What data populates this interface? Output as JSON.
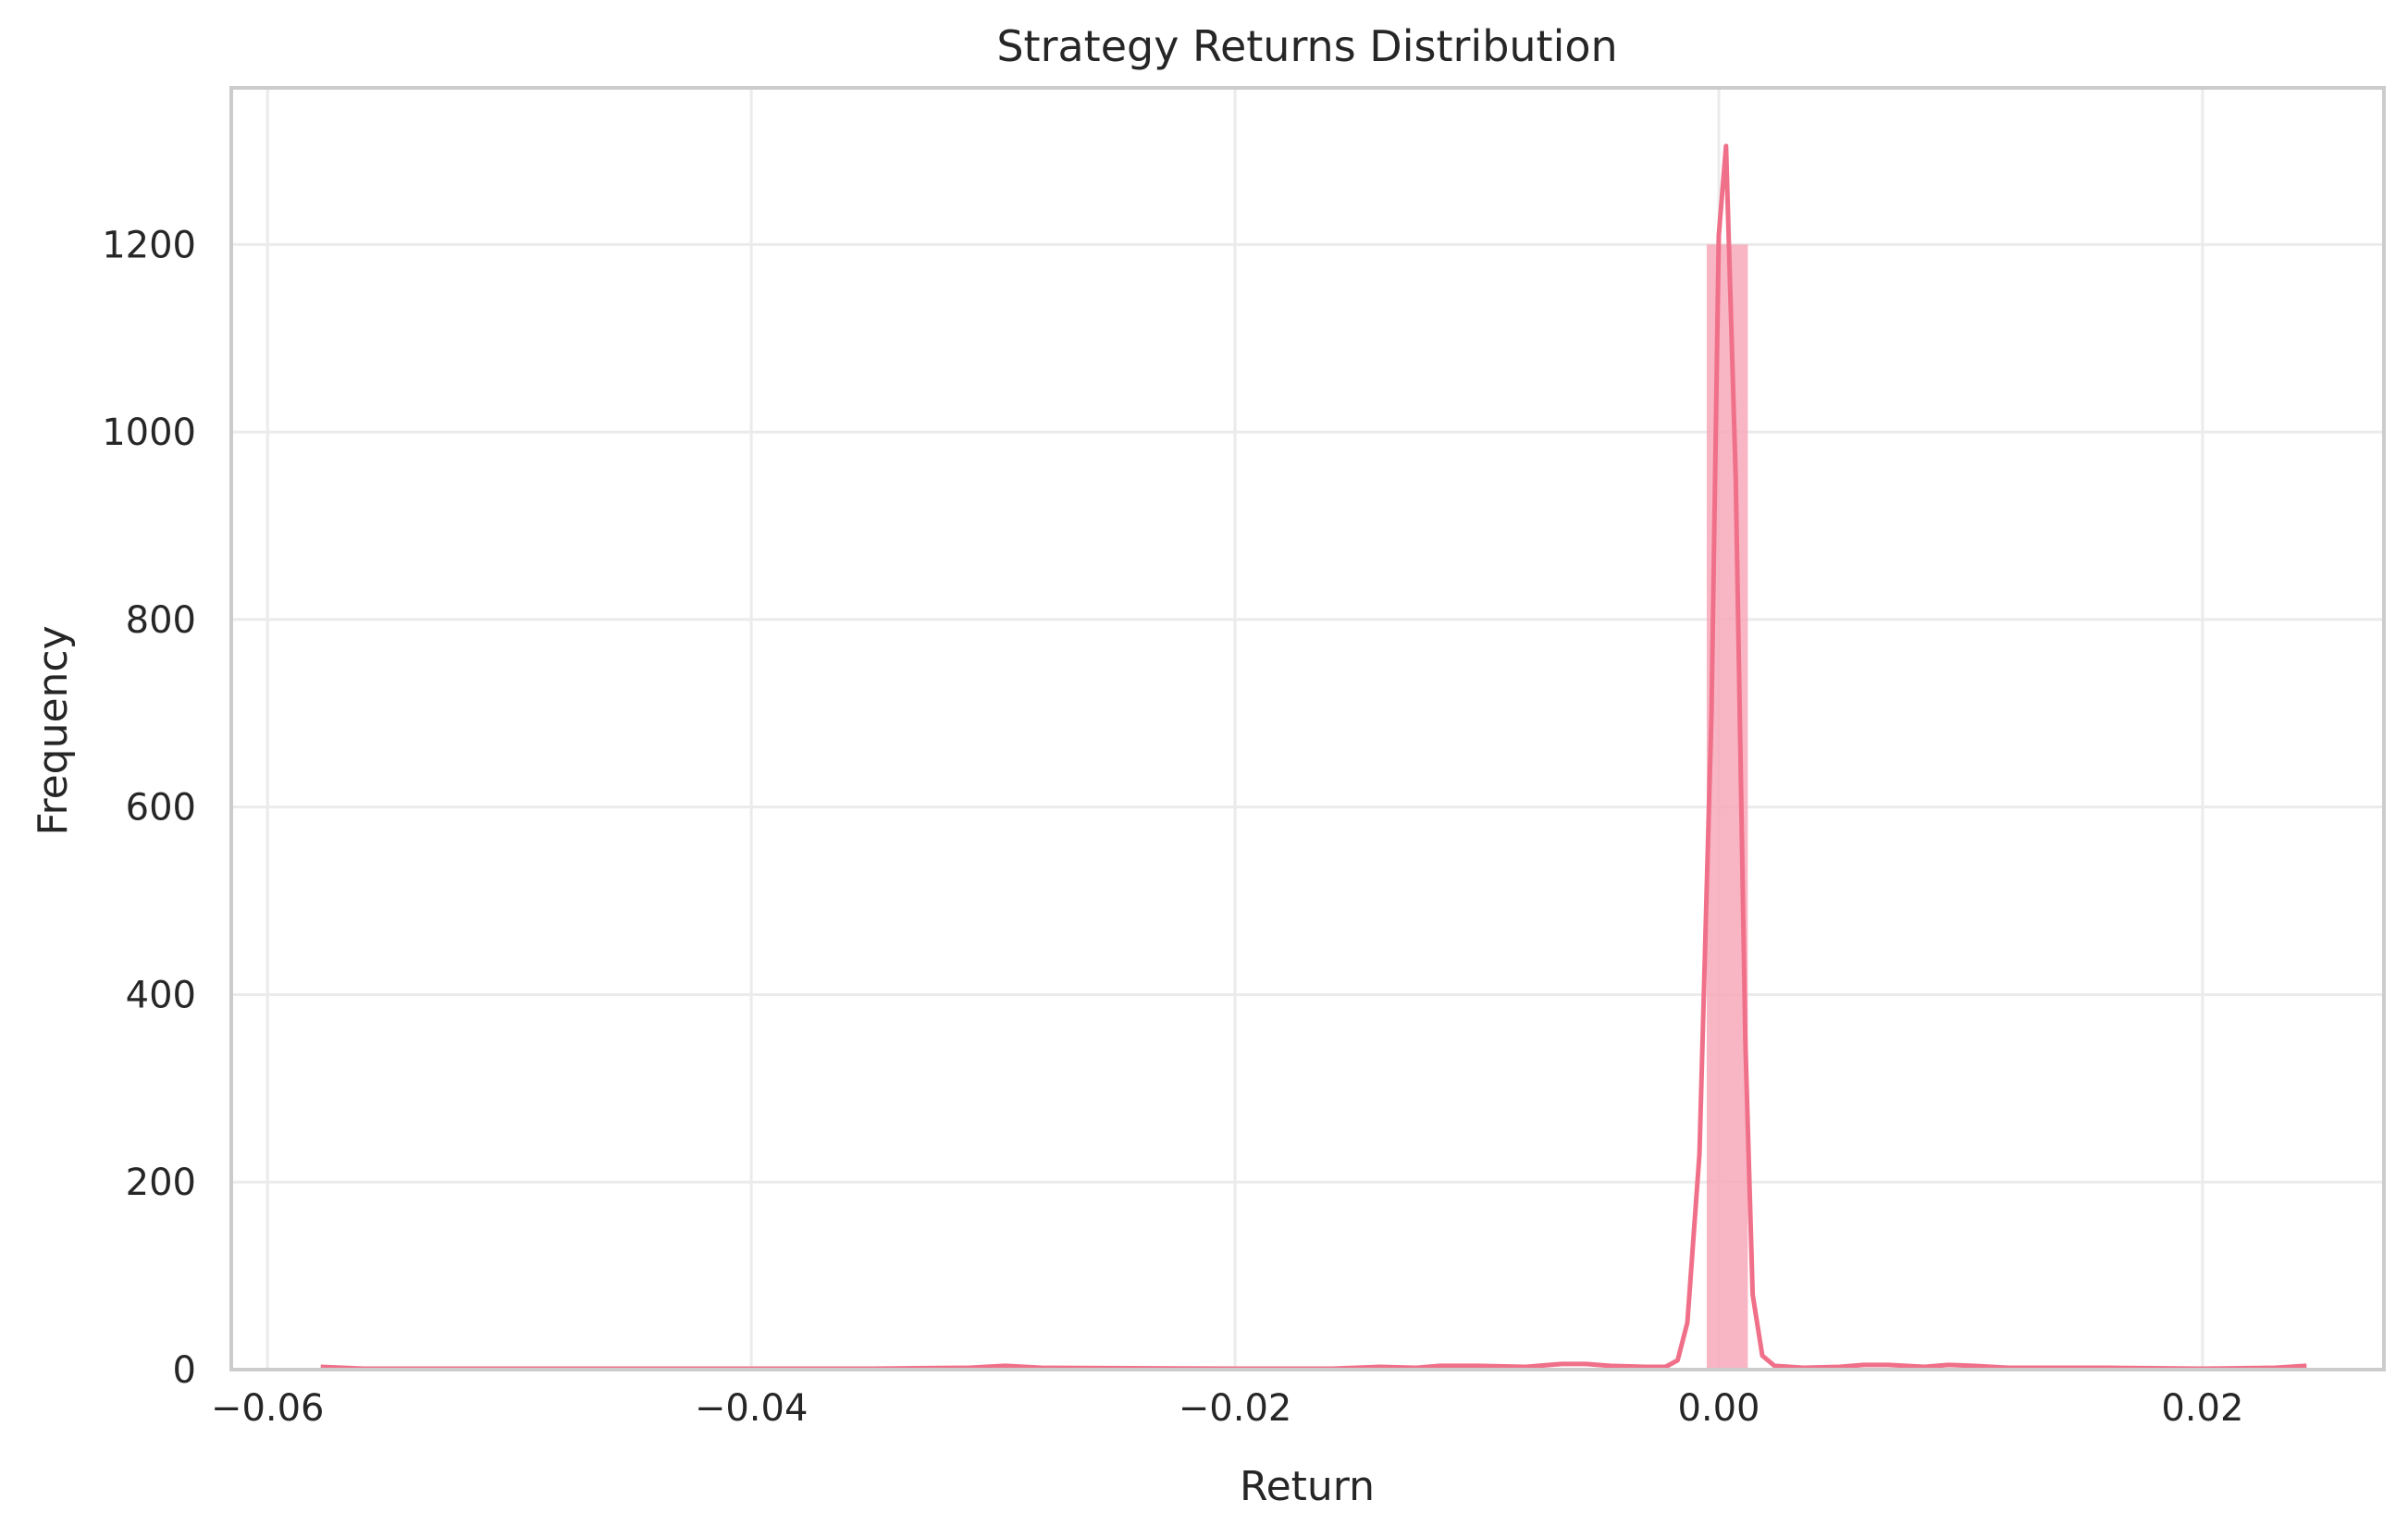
{
  "chart_data": {
    "type": "histogram",
    "title": "Strategy Returns Distribution",
    "xlabel": "Return",
    "ylabel": "Frequency",
    "xlim": [
      -0.0615,
      0.0275
    ],
    "ylim": [
      0,
      1367
    ],
    "x_ticks": [
      -0.06,
      -0.04,
      -0.02,
      0.0,
      0.02
    ],
    "x_tick_labels": [
      "−0.06",
      "−0.04",
      "−0.02",
      "0.00",
      "0.02"
    ],
    "y_ticks": [
      0,
      200,
      400,
      600,
      800,
      1000,
      1200
    ],
    "y_tick_labels": [
      "0",
      "200",
      "400",
      "600",
      "800",
      "1000",
      "1200"
    ],
    "grid": true,
    "legend": "none",
    "bars": [
      {
        "x0": -0.0005,
        "x1": 0.0012,
        "value": 1200
      }
    ],
    "kde": {
      "x": [
        -0.0578,
        -0.056,
        -0.05,
        -0.04,
        -0.035,
        -0.031,
        -0.0295,
        -0.028,
        -0.02,
        -0.016,
        -0.014,
        -0.0125,
        -0.0115,
        -0.01,
        -0.008,
        -0.0065,
        -0.0055,
        -0.0045,
        -0.003,
        -0.0022,
        -0.0017,
        -0.0013,
        -0.0008,
        -0.0003,
        0.0,
        0.0003,
        0.0007,
        0.0011,
        0.0014,
        0.0018,
        0.0023,
        0.0035,
        0.005,
        0.006,
        0.007,
        0.0085,
        0.0095,
        0.0105,
        0.012,
        0.0145,
        0.016,
        0.02,
        0.023,
        0.0243
      ],
      "y": [
        3,
        1,
        1,
        1,
        1,
        2,
        4,
        2,
        1,
        1,
        3,
        2,
        4,
        4,
        3,
        6,
        6,
        4,
        3,
        3,
        10,
        50,
        230,
        700,
        1210,
        1305,
        950,
        350,
        80,
        15,
        4,
        2,
        3,
        5,
        5,
        3,
        5,
        4,
        2,
        2,
        2,
        1,
        2,
        4
      ]
    },
    "colors": {
      "bar": "#f7a8b8",
      "line": "#f0708a",
      "text": "#262626",
      "grid": "#ebebeb",
      "frame": "#cccccc"
    }
  }
}
